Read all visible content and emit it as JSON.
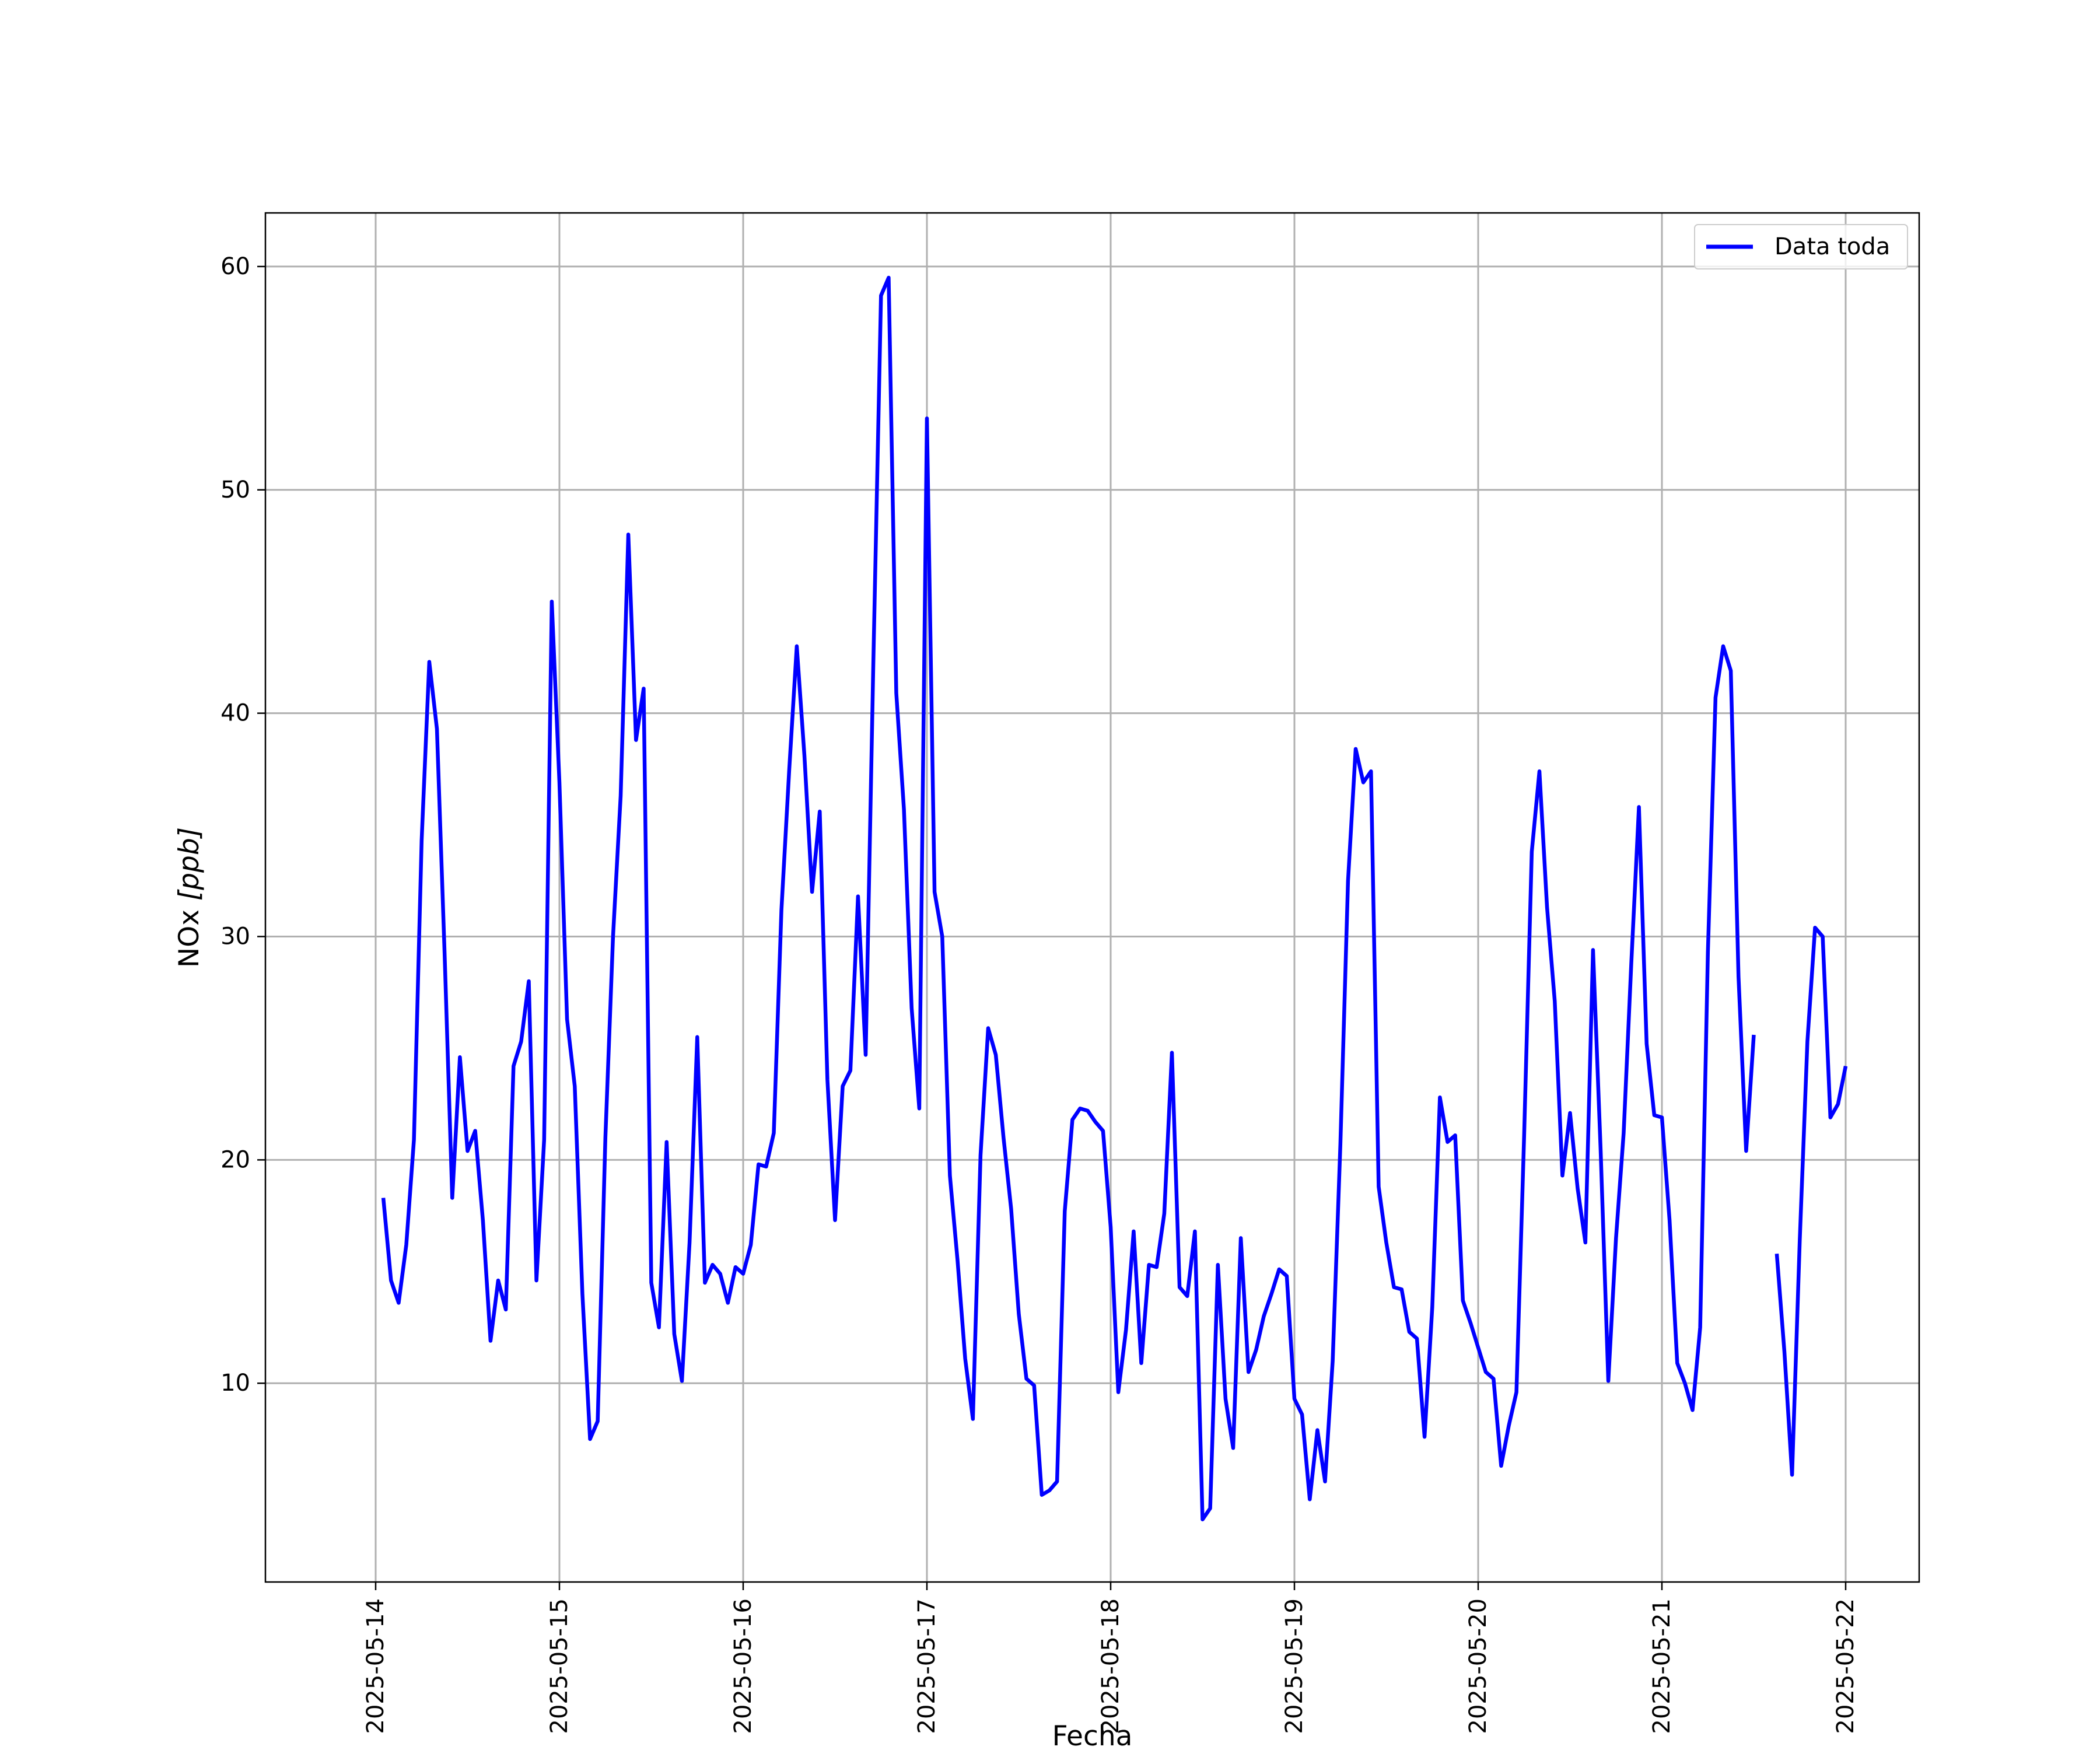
{
  "chart_data": {
    "type": "line",
    "title": "",
    "xlabel": "Fecha",
    "ylabel_main": "NOx ",
    "ylabel_unit": "[ppb]",
    "x_ticks": [
      "2025-05-14",
      "2025-05-15",
      "2025-05-16",
      "2025-05-17",
      "2025-05-18",
      "2025-05-19",
      "2025-05-20",
      "2025-05-21",
      "2025-05-22"
    ],
    "y_ticks": [
      10,
      20,
      30,
      40,
      50,
      60
    ],
    "xlim": [
      "2025-05-13T09:36",
      "2025-05-22T09:36"
    ],
    "ylim": [
      1.1,
      62.4
    ],
    "grid": true,
    "legend_position": "top-right",
    "colors": {
      "series": "#0000ff",
      "grid": "#b0b0b0",
      "axes": "#000000"
    },
    "series": [
      {
        "name": "Data toda",
        "x": [
          "2025-05-14T01:00",
          "2025-05-14T02:00",
          "2025-05-14T03:00",
          "2025-05-14T04:00",
          "2025-05-14T05:00",
          "2025-05-14T06:00",
          "2025-05-14T07:00",
          "2025-05-14T08:00",
          "2025-05-14T09:00",
          "2025-05-14T10:00",
          "2025-05-14T11:00",
          "2025-05-14T12:00",
          "2025-05-14T13:00",
          "2025-05-14T14:00",
          "2025-05-14T15:00",
          "2025-05-14T16:00",
          "2025-05-14T17:00",
          "2025-05-14T18:00",
          "2025-05-14T19:00",
          "2025-05-14T20:00",
          "2025-05-14T21:00",
          "2025-05-14T22:00",
          "2025-05-14T23:00",
          "2025-05-15T00:00",
          "2025-05-15T01:00",
          "2025-05-15T02:00",
          "2025-05-15T03:00",
          "2025-05-15T04:00",
          "2025-05-15T05:00",
          "2025-05-15T06:00",
          "2025-05-15T07:00",
          "2025-05-15T08:00",
          "2025-05-15T09:00",
          "2025-05-15T10:00",
          "2025-05-15T11:00",
          "2025-05-15T12:00",
          "2025-05-15T13:00",
          "2025-05-15T14:00",
          "2025-05-15T15:00",
          "2025-05-15T16:00",
          "2025-05-15T17:00",
          "2025-05-15T18:00",
          "2025-05-15T19:00",
          "2025-05-15T20:00",
          "2025-05-15T21:00",
          "2025-05-15T22:00",
          "2025-05-15T23:00",
          "2025-05-16T00:00",
          "2025-05-16T01:00",
          "2025-05-16T02:00",
          "2025-05-16T03:00",
          "2025-05-16T04:00",
          "2025-05-16T05:00",
          "2025-05-16T06:00",
          "2025-05-16T07:00",
          "2025-05-16T08:00",
          "2025-05-16T09:00",
          "2025-05-16T10:00",
          "2025-05-16T11:00",
          "2025-05-16T12:00",
          "2025-05-16T13:00",
          "2025-05-16T14:00",
          "2025-05-16T15:00",
          "2025-05-16T16:00",
          "2025-05-16T17:00",
          "2025-05-16T18:00",
          "2025-05-16T19:00",
          "2025-05-16T20:00",
          "2025-05-16T21:00",
          "2025-05-16T22:00",
          "2025-05-16T23:00",
          "2025-05-17T00:00",
          "2025-05-17T01:00",
          "2025-05-17T02:00",
          "2025-05-17T03:00",
          "2025-05-17T04:00",
          "2025-05-17T05:00",
          "2025-05-17T06:00",
          "2025-05-17T07:00",
          "2025-05-17T08:00",
          "2025-05-17T09:00",
          "2025-05-17T10:00",
          "2025-05-17T11:00",
          "2025-05-17T12:00",
          "2025-05-17T13:00",
          "2025-05-17T14:00",
          "2025-05-17T15:00",
          "2025-05-17T16:00",
          "2025-05-17T17:00",
          "2025-05-17T18:00",
          "2025-05-17T19:00",
          "2025-05-17T20:00",
          "2025-05-17T21:00",
          "2025-05-17T22:00",
          "2025-05-17T23:00",
          "2025-05-18T00:00",
          "2025-05-18T01:00",
          "2025-05-18T02:00",
          "2025-05-18T03:00",
          "2025-05-18T04:00",
          "2025-05-18T05:00",
          "2025-05-18T06:00",
          "2025-05-18T07:00",
          "2025-05-18T08:00",
          "2025-05-18T09:00",
          "2025-05-18T10:00",
          "2025-05-18T11:00",
          "2025-05-18T12:00",
          "2025-05-18T13:00",
          "2025-05-18T14:00",
          "2025-05-18T15:00",
          "2025-05-18T16:00",
          "2025-05-18T17:00",
          "2025-05-18T18:00",
          "2025-05-18T19:00",
          "2025-05-18T20:00",
          "2025-05-18T21:00",
          "2025-05-18T22:00",
          "2025-05-18T23:00",
          "2025-05-19T00:00",
          "2025-05-19T01:00",
          "2025-05-19T02:00",
          "2025-05-19T03:00",
          "2025-05-19T04:00",
          "2025-05-19T05:00",
          "2025-05-19T06:00",
          "2025-05-19T07:00",
          "2025-05-19T08:00",
          "2025-05-19T09:00",
          "2025-05-19T10:00",
          "2025-05-19T11:00",
          "2025-05-19T12:00",
          "2025-05-19T13:00",
          "2025-05-19T14:00",
          "2025-05-19T15:00",
          "2025-05-19T16:00",
          "2025-05-19T17:00",
          "2025-05-19T18:00",
          "2025-05-19T19:00",
          "2025-05-19T20:00",
          "2025-05-19T21:00",
          "2025-05-19T22:00",
          "2025-05-19T23:00",
          "2025-05-20T00:00",
          "2025-05-20T01:00",
          "2025-05-20T02:00",
          "2025-05-20T03:00",
          "2025-05-20T04:00",
          "2025-05-20T05:00",
          "2025-05-20T06:00",
          "2025-05-20T07:00",
          "2025-05-20T08:00",
          "2025-05-20T09:00",
          "2025-05-20T10:00",
          "2025-05-20T11:00",
          "2025-05-20T12:00",
          "2025-05-20T13:00",
          "2025-05-20T14:00",
          "2025-05-20T15:00",
          "2025-05-20T16:00",
          "2025-05-20T17:00",
          "2025-05-20T18:00",
          "2025-05-20T19:00",
          "2025-05-20T20:00",
          "2025-05-20T21:00",
          "2025-05-20T22:00",
          "2025-05-20T23:00",
          "2025-05-21T00:00",
          "2025-05-21T01:00",
          "2025-05-21T02:00",
          "2025-05-21T03:00",
          "2025-05-21T04:00",
          "2025-05-21T05:00",
          "2025-05-21T06:00",
          "2025-05-21T07:00",
          "2025-05-21T08:00",
          "2025-05-21T09:00",
          "2025-05-21T10:00",
          "2025-05-21T11:00",
          "2025-05-21T12:00",
          "2025-05-21T13:00",
          "2025-05-21T14:00",
          "2025-05-21T15:00",
          "2025-05-21T16:00",
          "2025-05-21T17:00",
          "2025-05-21T18:00",
          "2025-05-21T19:00",
          "2025-05-21T20:00",
          "2025-05-21T21:00",
          "2025-05-21T22:00",
          "2025-05-21T23:00",
          "2025-05-22T00:00"
        ],
        "y": [
          18.3,
          14.6,
          13.6,
          16.2,
          20.9,
          34.3,
          42.3,
          39.3,
          29.3,
          18.3,
          24.6,
          20.4,
          21.3,
          17.3,
          11.9,
          14.6,
          13.3,
          24.2,
          25.3,
          28.0,
          14.6,
          20.9,
          45.0,
          36.9,
          26.3,
          23.3,
          14.0,
          7.5,
          8.3,
          21.0,
          30.0,
          36.3,
          48.0,
          38.8,
          41.1,
          14.5,
          12.5,
          20.8,
          12.2,
          10.1,
          16.3,
          25.5,
          14.5,
          15.3,
          14.9,
          13.6,
          15.2,
          14.9,
          16.2,
          19.8,
          19.7,
          21.2,
          31.2,
          37.4,
          43.0,
          38.1,
          32.0,
          35.6,
          23.6,
          17.3,
          23.3,
          24.0,
          31.8,
          24.7,
          42.2,
          58.7,
          59.5,
          40.9,
          35.7,
          26.8,
          22.3,
          53.2,
          32.0,
          30.0,
          19.3,
          15.5,
          11.1,
          8.4,
          20.2,
          25.9,
          24.7,
          21.0,
          17.8,
          13.1,
          10.2,
          9.9,
          5.0,
          5.2,
          5.6,
          17.7,
          21.8,
          22.3,
          22.2,
          21.7,
          21.3,
          17.0,
          9.6,
          12.4,
          16.8,
          10.9,
          15.3,
          15.2,
          17.6,
          24.8,
          14.3,
          13.9,
          16.8,
          3.9,
          4.4,
          15.3,
          9.3,
          7.1,
          16.5,
          10.5,
          11.5,
          13.0,
          14.0,
          15.1,
          14.8,
          9.3,
          8.6,
          4.8,
          7.9,
          5.6,
          11.0,
          20.7,
          32.5,
          38.4,
          36.9,
          37.4,
          18.8,
          16.3,
          14.3,
          14.2,
          12.3,
          12.0,
          7.6,
          13.4,
          22.8,
          20.8,
          21.1,
          13.7,
          12.7,
          11.6,
          10.5,
          10.2,
          6.3,
          8.1,
          9.6,
          21.1,
          33.8,
          37.4,
          31.3,
          27.1,
          19.3,
          22.1,
          18.7,
          16.3,
          29.4,
          20.4,
          10.1,
          16.5,
          21.2,
          28.8,
          35.8,
          25.2,
          22.0,
          21.9,
          17.3,
          10.9,
          10.0,
          8.8,
          12.5,
          29.3,
          40.7,
          43.0,
          41.9,
          28.2,
          20.4,
          25.6,
          null,
          null,
          15.8,
          11.4,
          5.9,
          16.4,
          25.3,
          30.4,
          30.0,
          21.9,
          22.5,
          24.2
        ]
      }
    ]
  }
}
